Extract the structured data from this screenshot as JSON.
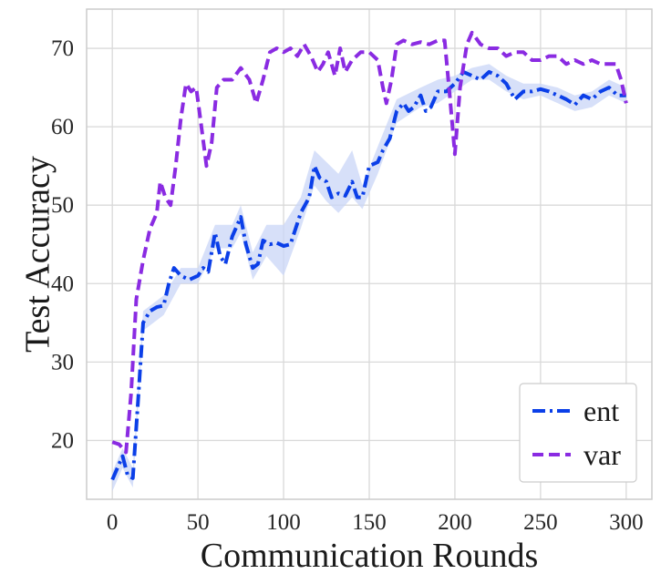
{
  "chart_data": {
    "type": "line",
    "xlabel": "Communication Rounds",
    "ylabel": "Test Accuracy",
    "xlim": [
      -15,
      315
    ],
    "ylim": [
      12.5,
      75
    ],
    "xticks": [
      0,
      50,
      100,
      150,
      200,
      250,
      300
    ],
    "yticks": [
      20,
      30,
      40,
      50,
      60,
      70
    ],
    "grid": true,
    "legend": "lower-right",
    "series": [
      {
        "name": "ent",
        "color": "#0b3fe8",
        "linestyle": "dashdot",
        "band_color": "#c9d6f7",
        "points": [
          [
            0,
            15.0
          ],
          [
            3,
            16.5
          ],
          [
            6,
            18.0
          ],
          [
            9,
            15.5
          ],
          [
            12,
            15.2
          ],
          [
            15,
            25.0
          ],
          [
            18,
            35.0
          ],
          [
            22,
            36.5
          ],
          [
            26,
            37.0
          ],
          [
            30,
            37.2
          ],
          [
            33,
            40.0
          ],
          [
            36,
            42.0
          ],
          [
            40,
            41.0
          ],
          [
            45,
            40.5
          ],
          [
            50,
            41.0
          ],
          [
            53,
            42.0
          ],
          [
            56,
            41.5
          ],
          [
            60,
            46.5
          ],
          [
            63,
            43.5
          ],
          [
            66,
            42.5
          ],
          [
            70,
            46.0
          ],
          [
            75,
            48.5
          ],
          [
            78,
            45.0
          ],
          [
            82,
            42.0
          ],
          [
            85,
            42.5
          ],
          [
            88,
            45.5
          ],
          [
            92,
            45.0
          ],
          [
            96,
            45.2
          ],
          [
            100,
            44.8
          ],
          [
            104,
            45.0
          ],
          [
            110,
            49.0
          ],
          [
            115,
            51.0
          ],
          [
            118,
            55.0
          ],
          [
            121,
            53.5
          ],
          [
            125,
            53.0
          ],
          [
            128,
            51.0
          ],
          [
            132,
            51.5
          ],
          [
            136,
            51.2
          ],
          [
            140,
            53.0
          ],
          [
            143,
            51.0
          ],
          [
            146,
            51.0
          ],
          [
            150,
            55.0
          ],
          [
            155,
            55.5
          ],
          [
            158,
            57.0
          ],
          [
            162,
            58.5
          ],
          [
            166,
            62.0
          ],
          [
            170,
            63.0
          ],
          [
            173,
            62.0
          ],
          [
            176,
            62.5
          ],
          [
            180,
            64.0
          ],
          [
            183,
            62.0
          ],
          [
            186,
            62.5
          ],
          [
            190,
            64.5
          ],
          [
            195,
            64.5
          ],
          [
            200,
            65.5
          ],
          [
            205,
            67.0
          ],
          [
            210,
            66.5
          ],
          [
            215,
            66.0
          ],
          [
            220,
            67.0
          ],
          [
            225,
            66.5
          ],
          [
            230,
            65.5
          ],
          [
            235,
            63.5
          ],
          [
            240,
            64.5
          ],
          [
            245,
            64.5
          ],
          [
            250,
            64.8
          ],
          [
            255,
            64.5
          ],
          [
            260,
            64.0
          ],
          [
            265,
            63.5
          ],
          [
            270,
            62.8
          ],
          [
            275,
            64.0
          ],
          [
            280,
            63.5
          ],
          [
            285,
            64.5
          ],
          [
            290,
            65.0
          ],
          [
            295,
            64.0
          ],
          [
            300,
            64.0
          ]
        ],
        "band": [
          [
            0,
            13.5,
            16.0
          ],
          [
            6,
            16.5,
            19.0
          ],
          [
            12,
            14.0,
            16.5
          ],
          [
            18,
            34.0,
            36.5
          ],
          [
            30,
            36.0,
            38.5
          ],
          [
            40,
            40.0,
            42.0
          ],
          [
            50,
            40.0,
            42.0
          ],
          [
            60,
            44.5,
            47.5
          ],
          [
            70,
            44.5,
            47.5
          ],
          [
            75,
            46.5,
            50.0
          ],
          [
            82,
            40.5,
            44.0
          ],
          [
            90,
            43.5,
            47.5
          ],
          [
            100,
            41.0,
            47.5
          ],
          [
            110,
            47.0,
            51.0
          ],
          [
            118,
            52.5,
            57.0
          ],
          [
            125,
            50.5,
            55.5
          ],
          [
            132,
            49.0,
            54.0
          ],
          [
            140,
            51.0,
            57.0
          ],
          [
            146,
            49.5,
            52.5
          ],
          [
            155,
            54.0,
            57.5
          ],
          [
            166,
            60.5,
            63.5
          ],
          [
            180,
            62.5,
            65.0
          ],
          [
            190,
            63.0,
            66.0
          ],
          [
            200,
            64.5,
            66.5
          ],
          [
            210,
            66.0,
            67.5
          ],
          [
            220,
            66.0,
            68.0
          ],
          [
            230,
            64.5,
            66.5
          ],
          [
            240,
            63.5,
            65.5
          ],
          [
            250,
            64.0,
            65.5
          ],
          [
            260,
            63.0,
            65.0
          ],
          [
            270,
            62.0,
            64.0
          ],
          [
            280,
            62.5,
            64.5
          ],
          [
            290,
            64.0,
            66.0
          ],
          [
            300,
            63.0,
            65.0
          ]
        ]
      },
      {
        "name": "var",
        "color": "#8a2be2",
        "linestyle": "dashed",
        "points": [
          [
            0,
            19.8
          ],
          [
            4,
            19.5
          ],
          [
            8,
            18.5
          ],
          [
            11,
            26.0
          ],
          [
            14,
            38.0
          ],
          [
            18,
            43.0
          ],
          [
            22,
            47.0
          ],
          [
            26,
            49.0
          ],
          [
            28,
            53.0
          ],
          [
            31,
            51.0
          ],
          [
            34,
            50.0
          ],
          [
            37,
            55.0
          ],
          [
            40,
            61.0
          ],
          [
            43,
            65.5
          ],
          [
            46,
            64.5
          ],
          [
            49,
            65.0
          ],
          [
            52,
            60.0
          ],
          [
            55,
            55.0
          ],
          [
            58,
            58.0
          ],
          [
            61,
            65.0
          ],
          [
            65,
            66.0
          ],
          [
            70,
            66.0
          ],
          [
            75,
            67.5
          ],
          [
            80,
            66.0
          ],
          [
            84,
            63.0
          ],
          [
            88,
            66.0
          ],
          [
            92,
            69.5
          ],
          [
            96,
            70.0
          ],
          [
            100,
            69.5
          ],
          [
            104,
            70.0
          ],
          [
            108,
            69.0
          ],
          [
            112,
            70.5
          ],
          [
            116,
            69.0
          ],
          [
            120,
            67.0
          ],
          [
            123,
            68.0
          ],
          [
            126,
            69.5
          ],
          [
            130,
            66.5
          ],
          [
            133,
            70.0
          ],
          [
            136,
            67.0
          ],
          [
            140,
            68.5
          ],
          [
            145,
            69.5
          ],
          [
            150,
            69.5
          ],
          [
            155,
            68.5
          ],
          [
            158,
            65.0
          ],
          [
            160,
            63.0
          ],
          [
            163,
            66.0
          ],
          [
            166,
            70.5
          ],
          [
            170,
            71.0
          ],
          [
            175,
            70.5
          ],
          [
            180,
            70.8
          ],
          [
            185,
            70.5
          ],
          [
            190,
            71.0
          ],
          [
            194,
            71.0
          ],
          [
            197,
            64.0
          ],
          [
            200,
            56.5
          ],
          [
            203,
            65.0
          ],
          [
            207,
            70.5
          ],
          [
            210,
            72.0
          ],
          [
            215,
            70.5
          ],
          [
            220,
            70.0
          ],
          [
            225,
            70.0
          ],
          [
            230,
            69.0
          ],
          [
            235,
            69.5
          ],
          [
            240,
            69.5
          ],
          [
            245,
            68.5
          ],
          [
            250,
            68.5
          ],
          [
            255,
            69.0
          ],
          [
            260,
            69.0
          ],
          [
            265,
            68.0
          ],
          [
            270,
            68.5
          ],
          [
            275,
            68.0
          ],
          [
            280,
            68.5
          ],
          [
            285,
            68.0
          ],
          [
            290,
            68.0
          ],
          [
            294,
            68.0
          ],
          [
            297,
            66.0
          ],
          [
            300,
            63.0
          ]
        ]
      }
    ]
  }
}
